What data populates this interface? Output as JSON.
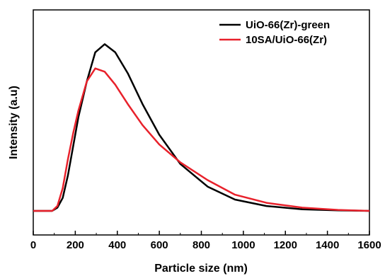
{
  "chart_data": {
    "type": "line",
    "title": "",
    "xlabel": "Particle size (nm)",
    "ylabel": "Intensity (a.u)",
    "xlim": [
      0,
      1600
    ],
    "ylim": [
      0,
      1.15
    ],
    "xticks": [
      "0",
      "200",
      "400",
      "600",
      "800",
      "1000",
      "1200",
      "1400",
      "1600"
    ],
    "grid": false,
    "legend": "top-right",
    "series": [
      {
        "name": "UiO-66(Zr)-green",
        "color": "#000000",
        "x": [
          0,
          90,
          115,
          140,
          165,
          190,
          215,
          255,
          295,
          340,
          390,
          450,
          520,
          600,
          700,
          830,
          960,
          1110,
          1280,
          1450,
          1600
        ],
        "y": [
          0,
          0,
          0.02,
          0.08,
          0.22,
          0.4,
          0.58,
          0.8,
          0.98,
          1.03,
          0.98,
          0.85,
          0.66,
          0.47,
          0.29,
          0.15,
          0.07,
          0.03,
          0.01,
          0.003,
          0
        ]
      },
      {
        "name": "10SA/UiO-66(Zr)",
        "color": "#e8212b",
        "x": [
          0,
          90,
          115,
          140,
          165,
          190,
          215,
          255,
          295,
          340,
          390,
          450,
          520,
          600,
          700,
          830,
          960,
          1110,
          1280,
          1450,
          1600
        ],
        "y": [
          0,
          0,
          0.03,
          0.14,
          0.32,
          0.48,
          0.62,
          0.8,
          0.88,
          0.86,
          0.78,
          0.66,
          0.53,
          0.41,
          0.3,
          0.19,
          0.1,
          0.05,
          0.02,
          0.006,
          0
        ]
      }
    ]
  }
}
